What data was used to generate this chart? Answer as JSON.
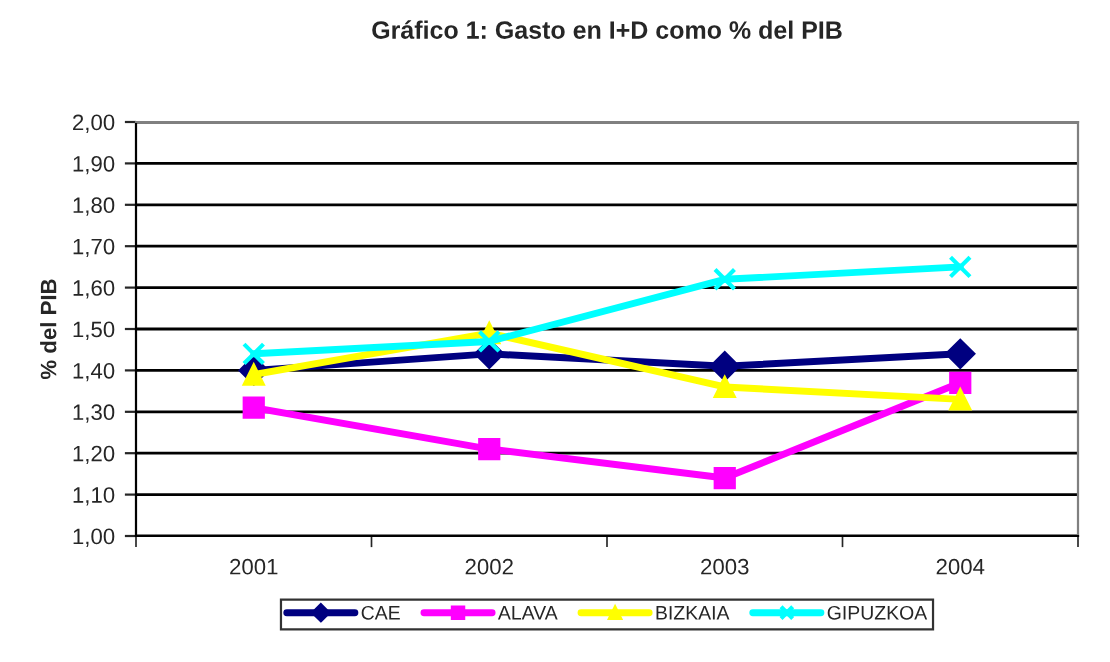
{
  "chart_data": {
    "type": "line",
    "title": "Gráfico 1: Gasto en I+D como % del PIB",
    "ylabel": "% del PIB",
    "categories": [
      "2001",
      "2002",
      "2003",
      "2004"
    ],
    "series": [
      {
        "name": "CAE",
        "color": "#000080",
        "marker": "diamond",
        "values": [
          1.4,
          1.44,
          1.41,
          1.44
        ]
      },
      {
        "name": "ALAVA",
        "color": "#ff00ff",
        "marker": "square",
        "values": [
          1.31,
          1.21,
          1.14,
          1.37
        ]
      },
      {
        "name": "BIZKAIA",
        "color": "#ffff00",
        "marker": "triangle",
        "values": [
          1.39,
          1.49,
          1.36,
          1.33
        ]
      },
      {
        "name": "GIPUZKOA",
        "color": "#00ffff",
        "marker": "cross",
        "values": [
          1.44,
          1.47,
          1.62,
          1.65
        ]
      }
    ],
    "ylim": [
      1.0,
      2.0
    ],
    "yticks": [
      {
        "value": 1.0,
        "label": "1,00"
      },
      {
        "value": 1.1,
        "label": "1,10"
      },
      {
        "value": 1.2,
        "label": "1,20"
      },
      {
        "value": 1.3,
        "label": "1,30"
      },
      {
        "value": 1.4,
        "label": "1,40"
      },
      {
        "value": 1.5,
        "label": "1,50"
      },
      {
        "value": 1.6,
        "label": "1,60"
      },
      {
        "value": 1.7,
        "label": "1,70"
      },
      {
        "value": 1.8,
        "label": "1,80"
      },
      {
        "value": 1.9,
        "label": "1,90"
      },
      {
        "value": 2.0,
        "label": "2,00"
      }
    ],
    "grid": "y",
    "legend": "bottom",
    "line_style": "solid"
  }
}
